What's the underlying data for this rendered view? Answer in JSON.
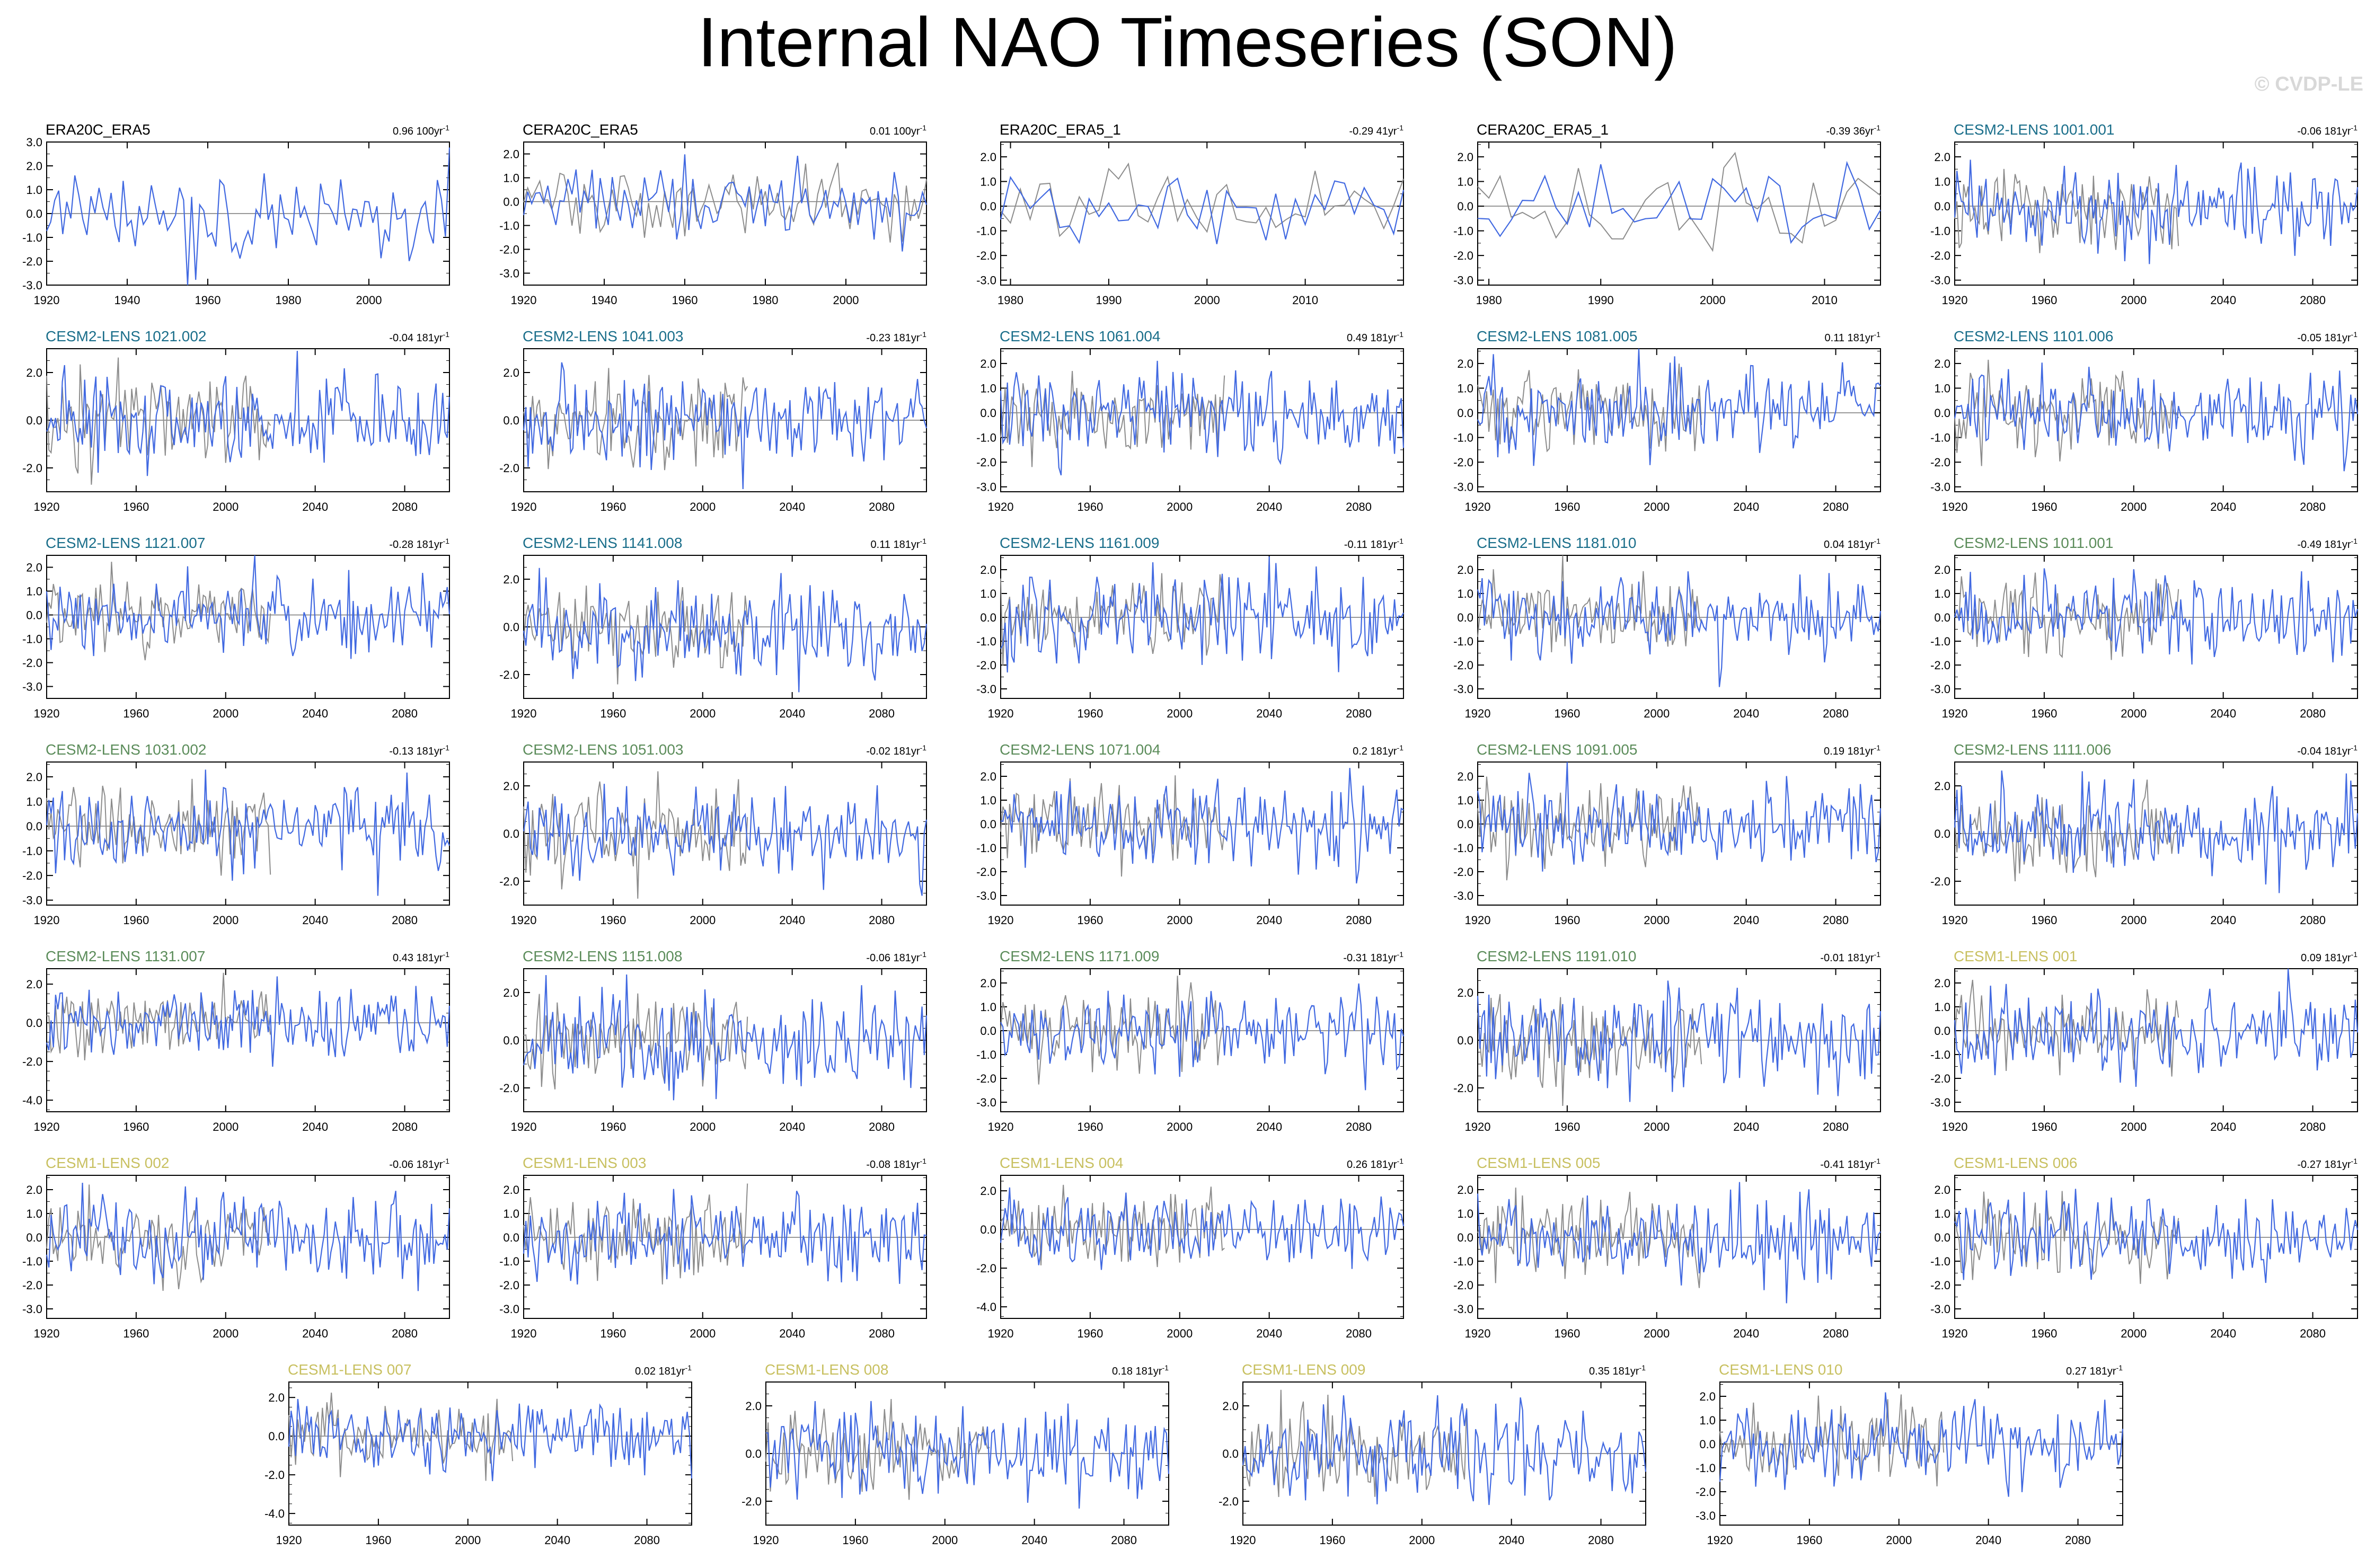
{
  "page_title": "Internal NAO Timeseries (SON)",
  "watermark": "© CVDP-LE",
  "colors": {
    "model_line": "#4169e1",
    "obs_line": "#8c8c8c",
    "era_label": "#000000",
    "cesm2_a": "#1a6e8a",
    "cesm2_b": "#5b8c5a",
    "cesm1": "#c8c060"
  },
  "chart_data": [
    {
      "type": "line",
      "title": "ERA20C_ERA5",
      "trend_label": "0.96 100yr",
      "trend_unit_exp": "-1",
      "title_color": "#000000",
      "start": 1920,
      "end": 2020,
      "x_ticks": [
        "1920",
        "1940",
        "1960",
        "1980",
        "2000"
      ],
      "y_ticks": [
        "3.0",
        "2.0",
        "1.0",
        "0.0",
        "-1.0",
        "-2.0",
        "-3.0"
      ],
      "ylim": [
        -3.0,
        3.0
      ],
      "has_obs": false
    },
    {
      "type": "line",
      "title": "CERA20C_ERA5",
      "trend_label": "0.01 100yr",
      "trend_unit_exp": "-1",
      "title_color": "#000000",
      "start": 1920,
      "end": 2020,
      "x_ticks": [
        "1920",
        "1940",
        "1960",
        "1980",
        "2000"
      ],
      "y_ticks": [
        "2.0",
        "1.0",
        "0.0",
        "-1.0",
        "-2.0",
        "-3.0"
      ],
      "ylim": [
        -3.5,
        2.5
      ],
      "has_obs": true
    },
    {
      "type": "line",
      "title": "ERA20C_ERA5_1",
      "trend_label": "-0.29 41yr",
      "trend_unit_exp": "-1",
      "title_color": "#000000",
      "start": 1979,
      "end": 2020,
      "x_ticks": [
        "1980",
        "1990",
        "2000",
        "2010"
      ],
      "y_ticks": [
        "2.0",
        "1.0",
        "0.0",
        "-1.0",
        "-2.0",
        "-3.0"
      ],
      "ylim": [
        -3.2,
        2.6
      ],
      "has_obs": true
    },
    {
      "type": "line",
      "title": "CERA20C_ERA5_1",
      "trend_label": "-0.39 36yr",
      "trend_unit_exp": "-1",
      "title_color": "#000000",
      "start": 1979,
      "end": 2015,
      "x_ticks": [
        "1980",
        "1990",
        "2000",
        "2010"
      ],
      "y_ticks": [
        "2.0",
        "1.0",
        "0.0",
        "-1.0",
        "-2.0",
        "-3.0"
      ],
      "ylim": [
        -3.2,
        2.6
      ],
      "has_obs": true
    },
    {
      "type": "line",
      "title": "CESM2-LENS 1001.001",
      "trend_label": "-0.06 181yr",
      "trend_unit_exp": "-1",
      "title_color": "#1a6e8a",
      "start": 1920,
      "end": 2100,
      "x_ticks": [
        "1920",
        "1960",
        "2000",
        "2040",
        "2080"
      ],
      "y_ticks": [
        "2.0",
        "1.0",
        "0.0",
        "-1.0",
        "-2.0",
        "-3.0"
      ],
      "ylim": [
        -3.2,
        2.6
      ],
      "has_obs": true
    },
    {
      "type": "line",
      "title": "CESM2-LENS 1021.002",
      "trend_label": "-0.04 181yr",
      "trend_unit_exp": "-1",
      "title_color": "#1a6e8a",
      "start": 1920,
      "end": 2100,
      "x_ticks": [
        "1920",
        "1960",
        "2000",
        "2040",
        "2080"
      ],
      "y_ticks": [
        "2.0",
        "0.0",
        "-2.0"
      ],
      "ylim": [
        -3.0,
        3.0
      ],
      "has_obs": true
    },
    {
      "type": "line",
      "title": "CESM2-LENS 1041.003",
      "trend_label": "-0.23 181yr",
      "trend_unit_exp": "-1",
      "title_color": "#1a6e8a",
      "start": 1920,
      "end": 2100,
      "x_ticks": [
        "1920",
        "1960",
        "2000",
        "2040",
        "2080"
      ],
      "y_ticks": [
        "2.0",
        "0.0",
        "-2.0"
      ],
      "ylim": [
        -3.0,
        3.0
      ],
      "has_obs": true
    },
    {
      "type": "line",
      "title": "CESM2-LENS 1061.004",
      "trend_label": "0.49 181yr",
      "trend_unit_exp": "-1",
      "title_color": "#1a6e8a",
      "start": 1920,
      "end": 2100,
      "x_ticks": [
        "1920",
        "1960",
        "2000",
        "2040",
        "2080"
      ],
      "y_ticks": [
        "2.0",
        "1.0",
        "0.0",
        "-1.0",
        "-2.0",
        "-3.0"
      ],
      "ylim": [
        -3.2,
        2.6
      ],
      "has_obs": true
    },
    {
      "type": "line",
      "title": "CESM2-LENS 1081.005",
      "trend_label": "0.11 181yr",
      "trend_unit_exp": "-1",
      "title_color": "#1a6e8a",
      "start": 1920,
      "end": 2100,
      "x_ticks": [
        "1920",
        "1960",
        "2000",
        "2040",
        "2080"
      ],
      "y_ticks": [
        "2.0",
        "1.0",
        "0.0",
        "-1.0",
        "-2.0",
        "-3.0"
      ],
      "ylim": [
        -3.2,
        2.6
      ],
      "has_obs": true
    },
    {
      "type": "line",
      "title": "CESM2-LENS 1101.006",
      "trend_label": "-0.05 181yr",
      "trend_unit_exp": "-1",
      "title_color": "#1a6e8a",
      "start": 1920,
      "end": 2100,
      "x_ticks": [
        "1920",
        "1960",
        "2000",
        "2040",
        "2080"
      ],
      "y_ticks": [
        "2.0",
        "1.0",
        "0.0",
        "-1.0",
        "-2.0",
        "-3.0"
      ],
      "ylim": [
        -3.2,
        2.6
      ],
      "has_obs": true
    },
    {
      "type": "line",
      "title": "CESM2-LENS 1121.007",
      "trend_label": "-0.28 181yr",
      "trend_unit_exp": "-1",
      "title_color": "#1a6e8a",
      "start": 1920,
      "end": 2100,
      "x_ticks": [
        "1920",
        "1960",
        "2000",
        "2040",
        "2080"
      ],
      "y_ticks": [
        "2.0",
        "1.0",
        "0.0",
        "-1.0",
        "-2.0",
        "-3.0"
      ],
      "ylim": [
        -3.5,
        2.5
      ],
      "has_obs": true
    },
    {
      "type": "line",
      "title": "CESM2-LENS 1141.008",
      "trend_label": "0.11 181yr",
      "trend_unit_exp": "-1",
      "title_color": "#1a6e8a",
      "start": 1920,
      "end": 2100,
      "x_ticks": [
        "1920",
        "1960",
        "2000",
        "2040",
        "2080"
      ],
      "y_ticks": [
        "2.0",
        "0.0",
        "-2.0"
      ],
      "ylim": [
        -3.0,
        3.0
      ],
      "has_obs": true
    },
    {
      "type": "line",
      "title": "CESM2-LENS 1161.009",
      "trend_label": "-0.11 181yr",
      "trend_unit_exp": "-1",
      "title_color": "#1a6e8a",
      "start": 1920,
      "end": 2100,
      "x_ticks": [
        "1920",
        "1960",
        "2000",
        "2040",
        "2080"
      ],
      "y_ticks": [
        "2.0",
        "1.0",
        "0.0",
        "-1.0",
        "-2.0",
        "-3.0"
      ],
      "ylim": [
        -3.4,
        2.6
      ],
      "has_obs": true
    },
    {
      "type": "line",
      "title": "CESM2-LENS 1181.010",
      "trend_label": "0.04 181yr",
      "trend_unit_exp": "-1",
      "title_color": "#1a6e8a",
      "start": 1920,
      "end": 2100,
      "x_ticks": [
        "1920",
        "1960",
        "2000",
        "2040",
        "2080"
      ],
      "y_ticks": [
        "2.0",
        "1.0",
        "0.0",
        "-1.0",
        "-2.0",
        "-3.0"
      ],
      "ylim": [
        -3.4,
        2.6
      ],
      "has_obs": true
    },
    {
      "type": "line",
      "title": "CESM2-LENS 1011.001",
      "trend_label": "-0.49 181yr",
      "trend_unit_exp": "-1",
      "title_color": "#5b8c5a",
      "start": 1920,
      "end": 2100,
      "x_ticks": [
        "1920",
        "1960",
        "2000",
        "2040",
        "2080"
      ],
      "y_ticks": [
        "2.0",
        "1.0",
        "0.0",
        "-1.0",
        "-2.0",
        "-3.0"
      ],
      "ylim": [
        -3.4,
        2.6
      ],
      "has_obs": true
    },
    {
      "type": "line",
      "title": "CESM2-LENS 1031.002",
      "trend_label": "-0.13 181yr",
      "trend_unit_exp": "-1",
      "title_color": "#5b8c5a",
      "start": 1920,
      "end": 2100,
      "x_ticks": [
        "1920",
        "1960",
        "2000",
        "2040",
        "2080"
      ],
      "y_ticks": [
        "2.0",
        "1.0",
        "0.0",
        "-1.0",
        "-2.0",
        "-3.0"
      ],
      "ylim": [
        -3.2,
        2.6
      ],
      "has_obs": true
    },
    {
      "type": "line",
      "title": "CESM2-LENS 1051.003",
      "trend_label": "-0.02 181yr",
      "trend_unit_exp": "-1",
      "title_color": "#5b8c5a",
      "start": 1920,
      "end": 2100,
      "x_ticks": [
        "1920",
        "1960",
        "2000",
        "2040",
        "2080"
      ],
      "y_ticks": [
        "2.0",
        "0.0",
        "-2.0"
      ],
      "ylim": [
        -3.0,
        3.0
      ],
      "has_obs": true
    },
    {
      "type": "line",
      "title": "CESM2-LENS 1071.004",
      "trend_label": "0.2 181yr",
      "trend_unit_exp": "-1",
      "title_color": "#5b8c5a",
      "start": 1920,
      "end": 2100,
      "x_ticks": [
        "1920",
        "1960",
        "2000",
        "2040",
        "2080"
      ],
      "y_ticks": [
        "2.0",
        "1.0",
        "0.0",
        "-1.0",
        "-2.0",
        "-3.0"
      ],
      "ylim": [
        -3.4,
        2.6
      ],
      "has_obs": true
    },
    {
      "type": "line",
      "title": "CESM2-LENS 1091.005",
      "trend_label": "0.19 181yr",
      "trend_unit_exp": "-1",
      "title_color": "#5b8c5a",
      "start": 1920,
      "end": 2100,
      "x_ticks": [
        "1920",
        "1960",
        "2000",
        "2040",
        "2080"
      ],
      "y_ticks": [
        "2.0",
        "1.0",
        "0.0",
        "-1.0",
        "-2.0",
        "-3.0"
      ],
      "ylim": [
        -3.4,
        2.6
      ],
      "has_obs": true
    },
    {
      "type": "line",
      "title": "CESM2-LENS 1111.006",
      "trend_label": "-0.04 181yr",
      "trend_unit_exp": "-1",
      "title_color": "#5b8c5a",
      "start": 1920,
      "end": 2100,
      "x_ticks": [
        "1920",
        "1960",
        "2000",
        "2040",
        "2080"
      ],
      "y_ticks": [
        "2.0",
        "0.0",
        "-2.0"
      ],
      "ylim": [
        -3.0,
        3.0
      ],
      "has_obs": true
    },
    {
      "type": "line",
      "title": "CESM2-LENS 1131.007",
      "trend_label": "0.43 181yr",
      "trend_unit_exp": "-1",
      "title_color": "#5b8c5a",
      "start": 1920,
      "end": 2100,
      "x_ticks": [
        "1920",
        "1960",
        "2000",
        "2040",
        "2080"
      ],
      "y_ticks": [
        "2.0",
        "0.0",
        "-2.0",
        "-4.0"
      ],
      "ylim": [
        -4.6,
        2.8
      ],
      "has_obs": true
    },
    {
      "type": "line",
      "title": "CESM2-LENS 1151.008",
      "trend_label": "-0.06 181yr",
      "trend_unit_exp": "-1",
      "title_color": "#5b8c5a",
      "start": 1920,
      "end": 2100,
      "x_ticks": [
        "1920",
        "1960",
        "2000",
        "2040",
        "2080"
      ],
      "y_ticks": [
        "2.0",
        "0.0",
        "-2.0"
      ],
      "ylim": [
        -3.0,
        3.0
      ],
      "has_obs": true
    },
    {
      "type": "line",
      "title": "CESM2-LENS 1171.009",
      "trend_label": "-0.31 181yr",
      "trend_unit_exp": "-1",
      "title_color": "#5b8c5a",
      "start": 1920,
      "end": 2100,
      "x_ticks": [
        "1920",
        "1960",
        "2000",
        "2040",
        "2080"
      ],
      "y_ticks": [
        "2.0",
        "1.0",
        "0.0",
        "-1.0",
        "-2.0",
        "-3.0"
      ],
      "ylim": [
        -3.4,
        2.6
      ],
      "has_obs": true
    },
    {
      "type": "line",
      "title": "CESM2-LENS 1191.010",
      "trend_label": "-0.01 181yr",
      "trend_unit_exp": "-1",
      "title_color": "#5b8c5a",
      "start": 1920,
      "end": 2100,
      "x_ticks": [
        "1920",
        "1960",
        "2000",
        "2040",
        "2080"
      ],
      "y_ticks": [
        "2.0",
        "0.0",
        "-2.0"
      ],
      "ylim": [
        -3.0,
        3.0
      ],
      "has_obs": true
    },
    {
      "type": "line",
      "title": "CESM1-LENS 001",
      "trend_label": "0.09 181yr",
      "trend_unit_exp": "-1",
      "title_color": "#c8c060",
      "start": 1920,
      "end": 2100,
      "x_ticks": [
        "1920",
        "1960",
        "2000",
        "2040",
        "2080"
      ],
      "y_ticks": [
        "2.0",
        "1.0",
        "0.0",
        "-1.0",
        "-2.0",
        "-3.0"
      ],
      "ylim": [
        -3.4,
        2.6
      ],
      "has_obs": true
    },
    {
      "type": "line",
      "title": "CESM1-LENS 002",
      "trend_label": "-0.06 181yr",
      "trend_unit_exp": "-1",
      "title_color": "#c8c060",
      "start": 1920,
      "end": 2100,
      "x_ticks": [
        "1920",
        "1960",
        "2000",
        "2040",
        "2080"
      ],
      "y_ticks": [
        "2.0",
        "1.0",
        "0.0",
        "-1.0",
        "-2.0",
        "-3.0"
      ],
      "ylim": [
        -3.4,
        2.6
      ],
      "has_obs": true
    },
    {
      "type": "line",
      "title": "CESM1-LENS 003",
      "trend_label": "-0.08 181yr",
      "trend_unit_exp": "-1",
      "title_color": "#c8c060",
      "start": 1920,
      "end": 2100,
      "x_ticks": [
        "1920",
        "1960",
        "2000",
        "2040",
        "2080"
      ],
      "y_ticks": [
        "2.0",
        "1.0",
        "0.0",
        "-1.0",
        "-2.0",
        "-3.0"
      ],
      "ylim": [
        -3.4,
        2.6
      ],
      "has_obs": true
    },
    {
      "type": "line",
      "title": "CESM1-LENS 004",
      "trend_label": "0.26 181yr",
      "trend_unit_exp": "-1",
      "title_color": "#c8c060",
      "start": 1920,
      "end": 2100,
      "x_ticks": [
        "1920",
        "1960",
        "2000",
        "2040",
        "2080"
      ],
      "y_ticks": [
        "2.0",
        "0.0",
        "-2.0",
        "-4.0"
      ],
      "ylim": [
        -4.6,
        2.8
      ],
      "has_obs": true
    },
    {
      "type": "line",
      "title": "CESM1-LENS 005",
      "trend_label": "-0.41 181yr",
      "trend_unit_exp": "-1",
      "title_color": "#c8c060",
      "start": 1920,
      "end": 2100,
      "x_ticks": [
        "1920",
        "1960",
        "2000",
        "2040",
        "2080"
      ],
      "y_ticks": [
        "2.0",
        "1.0",
        "0.0",
        "-1.0",
        "-2.0",
        "-3.0"
      ],
      "ylim": [
        -3.4,
        2.6
      ],
      "has_obs": true
    },
    {
      "type": "line",
      "title": "CESM1-LENS 006",
      "trend_label": "-0.27 181yr",
      "trend_unit_exp": "-1",
      "title_color": "#c8c060",
      "start": 1920,
      "end": 2100,
      "x_ticks": [
        "1920",
        "1960",
        "2000",
        "2040",
        "2080"
      ],
      "y_ticks": [
        "2.0",
        "1.0",
        "0.0",
        "-1.0",
        "-2.0",
        "-3.0"
      ],
      "ylim": [
        -3.4,
        2.6
      ],
      "has_obs": true
    },
    {
      "type": "line",
      "title": "CESM1-LENS 007",
      "trend_label": "0.02 181yr",
      "trend_unit_exp": "-1",
      "title_color": "#c8c060",
      "start": 1920,
      "end": 2100,
      "x_ticks": [
        "1920",
        "1960",
        "2000",
        "2040",
        "2080"
      ],
      "y_ticks": [
        "2.0",
        "0.0",
        "-2.0",
        "-4.0"
      ],
      "ylim": [
        -4.6,
        2.8
      ],
      "has_obs": true
    },
    {
      "type": "line",
      "title": "CESM1-LENS 008",
      "trend_label": "0.18 181yr",
      "trend_unit_exp": "-1",
      "title_color": "#c8c060",
      "start": 1920,
      "end": 2100,
      "x_ticks": [
        "1920",
        "1960",
        "2000",
        "2040",
        "2080"
      ],
      "y_ticks": [
        "2.0",
        "0.0",
        "-2.0"
      ],
      "ylim": [
        -3.0,
        3.0
      ],
      "has_obs": true
    },
    {
      "type": "line",
      "title": "CESM1-LENS 009",
      "trend_label": "0.35 181yr",
      "trend_unit_exp": "-1",
      "title_color": "#c8c060",
      "start": 1920,
      "end": 2100,
      "x_ticks": [
        "1920",
        "1960",
        "2000",
        "2040",
        "2080"
      ],
      "y_ticks": [
        "2.0",
        "0.0",
        "-2.0"
      ],
      "ylim": [
        -3.0,
        3.0
      ],
      "has_obs": true
    },
    {
      "type": "line",
      "title": "CESM1-LENS 010",
      "trend_label": "0.27 181yr",
      "trend_unit_exp": "-1",
      "title_color": "#c8c060",
      "start": 1920,
      "end": 2100,
      "x_ticks": [
        "1920",
        "1960",
        "2000",
        "2040",
        "2080"
      ],
      "y_ticks": [
        "2.0",
        "1.0",
        "0.0",
        "-1.0",
        "-2.0",
        "-3.0"
      ],
      "ylim": [
        -3.4,
        2.6
      ],
      "has_obs": true
    }
  ]
}
